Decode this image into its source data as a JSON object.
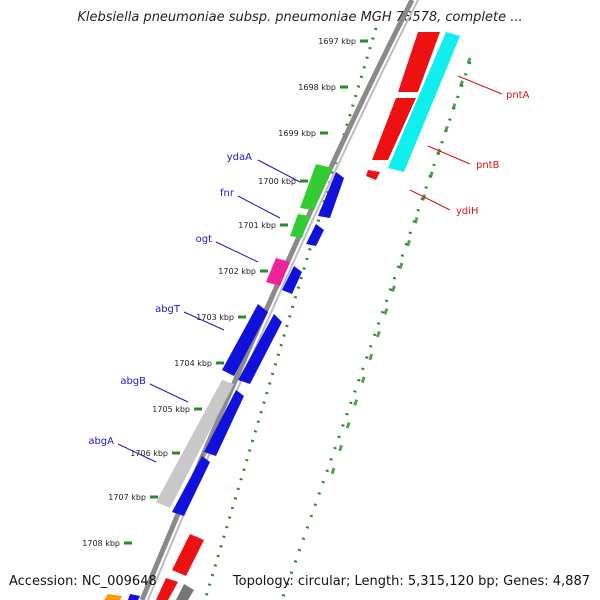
{
  "title": "Klebsiella pneumoniae subsp. pneumoniae MGH 78578, complete ...",
  "footer": {
    "accession": "Accession: NC_009648",
    "summary": "Topology: circular; Length: 5,315,120 bp; Genes: 4,887"
  },
  "ticks": [
    "1697 kbp",
    "1698 kbp",
    "1699 kbp",
    "1700 kbp",
    "1701 kbp",
    "1702 kbp",
    "1703 kbp",
    "1704 kbp",
    "1705 kbp",
    "1706 kbp",
    "1707 kbp",
    "1708 kbp"
  ],
  "gene_labels": {
    "left": [
      "ydaA",
      "fnr",
      "ogt",
      "abgT",
      "abgB",
      "abgA"
    ],
    "right": [
      "pntA",
      "pntB",
      "ydiH"
    ]
  },
  "colors": {
    "backbone": "#8a8a8a",
    "ring_dots": "#2a8a2a",
    "label_left": "#1a1acc",
    "label_right": "#dd1111",
    "red": "#ee1111",
    "cyan": "#11eeee",
    "green": "#33cc33",
    "blue": "#1111dd",
    "magenta": "#ee2299",
    "gray": "#c8c8c8",
    "orange": "#ff9900",
    "dark_gray": "#777777"
  }
}
